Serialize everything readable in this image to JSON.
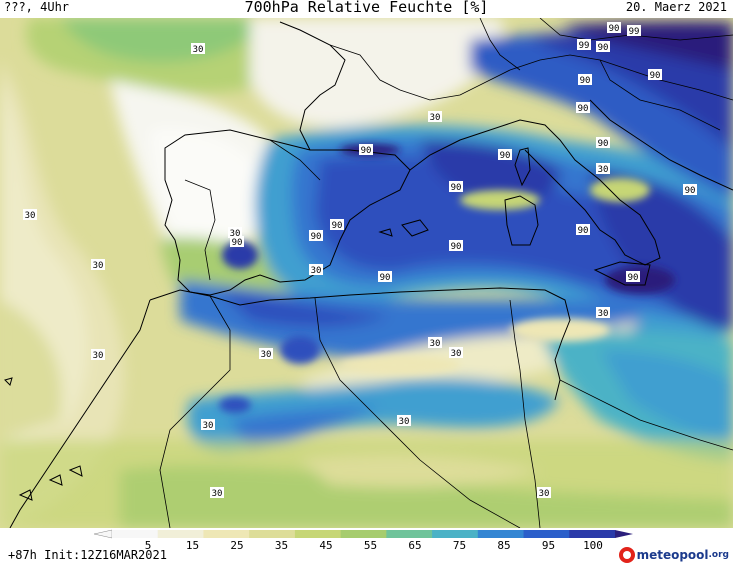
{
  "header": {
    "left": "???, 4Uhr",
    "title": "700hPa Relative Feuchte [%]",
    "date": "20. Maerz 2021"
  },
  "footer": {
    "run_info": "+87h Init:12Z16MAR2021",
    "brand_name": "meteopool",
    "brand_tld": ".org"
  },
  "legend": {
    "ticks": [
      "5",
      "15",
      "25",
      "35",
      "45",
      "55",
      "65",
      "75",
      "85",
      "95",
      "100"
    ],
    "colors": [
      "#f7f7f7",
      "#f1efd8",
      "#eee7b5",
      "#dddd99",
      "#c6d676",
      "#a6cc6e",
      "#6fc39a",
      "#4bb2c6",
      "#3486d3",
      "#2b5fca",
      "#2a3aa9",
      "#2c1f7c"
    ]
  },
  "contour_labels": [
    {
      "text": "30"
    },
    {
      "text": "30"
    },
    {
      "text": "30"
    },
    {
      "text": "30"
    },
    {
      "text": "30"
    },
    {
      "text": "30"
    },
    {
      "text": "30"
    },
    {
      "text": "30"
    },
    {
      "text": "30"
    },
    {
      "text": "30"
    },
    {
      "text": "30"
    },
    {
      "text": "30"
    },
    {
      "text": "30"
    },
    {
      "text": "30"
    },
    {
      "text": "30"
    },
    {
      "text": "30"
    },
    {
      "text": "90"
    },
    {
      "text": "90"
    },
    {
      "text": "90"
    },
    {
      "text": "90"
    },
    {
      "text": "90"
    },
    {
      "text": "90"
    },
    {
      "text": "90"
    },
    {
      "text": "90"
    },
    {
      "text": "90"
    },
    {
      "text": "90"
    },
    {
      "text": "90"
    },
    {
      "text": "90"
    },
    {
      "text": "90"
    },
    {
      "text": "90"
    },
    {
      "text": "90"
    },
    {
      "text": "90"
    },
    {
      "text": "90"
    },
    {
      "text": "99"
    },
    {
      "text": "99"
    }
  ]
}
